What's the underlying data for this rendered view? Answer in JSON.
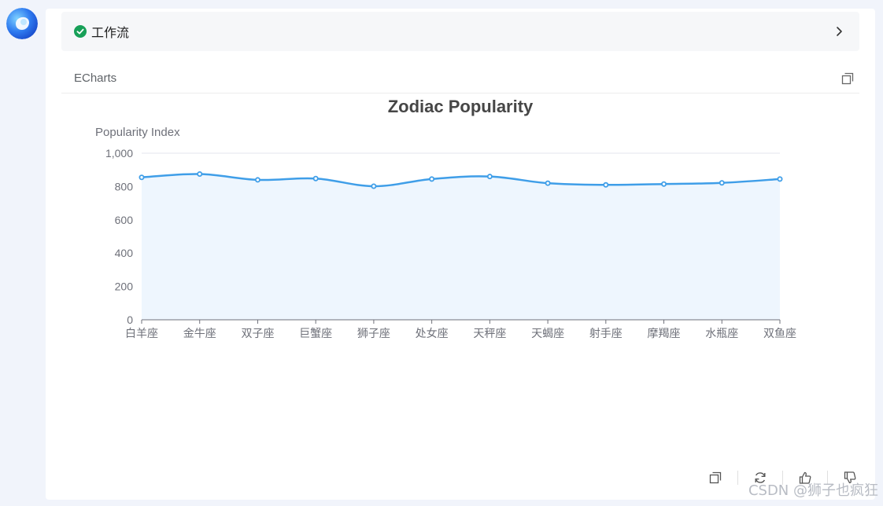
{
  "workflow": {
    "label": "工作流",
    "status_icon": "check-circle-icon",
    "status_color": "#18a058"
  },
  "panel": {
    "label": "ECharts"
  },
  "chart_data": {
    "type": "line",
    "title": "Zodiac Popularity",
    "ylabel": "Popularity Index",
    "xlabel": "",
    "categories": [
      "白羊座",
      "金牛座",
      "双子座",
      "巨蟹座",
      "狮子座",
      "处女座",
      "天秤座",
      "天蝎座",
      "射手座",
      "摩羯座",
      "水瓶座",
      "双鱼座"
    ],
    "series": [
      {
        "values": [
          855,
          875,
          840,
          848,
          802,
          845,
          860,
          820,
          810,
          815,
          822,
          845
        ],
        "smooth": true,
        "area": true,
        "color": "#3f9ee8"
      }
    ],
    "ylim": [
      0,
      1000
    ],
    "yticks": [
      0,
      200,
      400,
      600,
      800,
      1000
    ],
    "ytick_labels": [
      "0",
      "200",
      "400",
      "600",
      "800",
      "1,000"
    ],
    "grid": true,
    "legend": "none"
  },
  "actions": {
    "icons": [
      "copy-icon",
      "refresh-icon",
      "thumbs-up-icon",
      "thumbs-down-icon"
    ]
  },
  "watermark": {
    "text": "CSDN @狮子也疯狂"
  },
  "colors": {
    "line": "#3f9ee8",
    "area": "#eef6fe",
    "grid": "#e3e6ec",
    "accent_green": "#18a058"
  }
}
